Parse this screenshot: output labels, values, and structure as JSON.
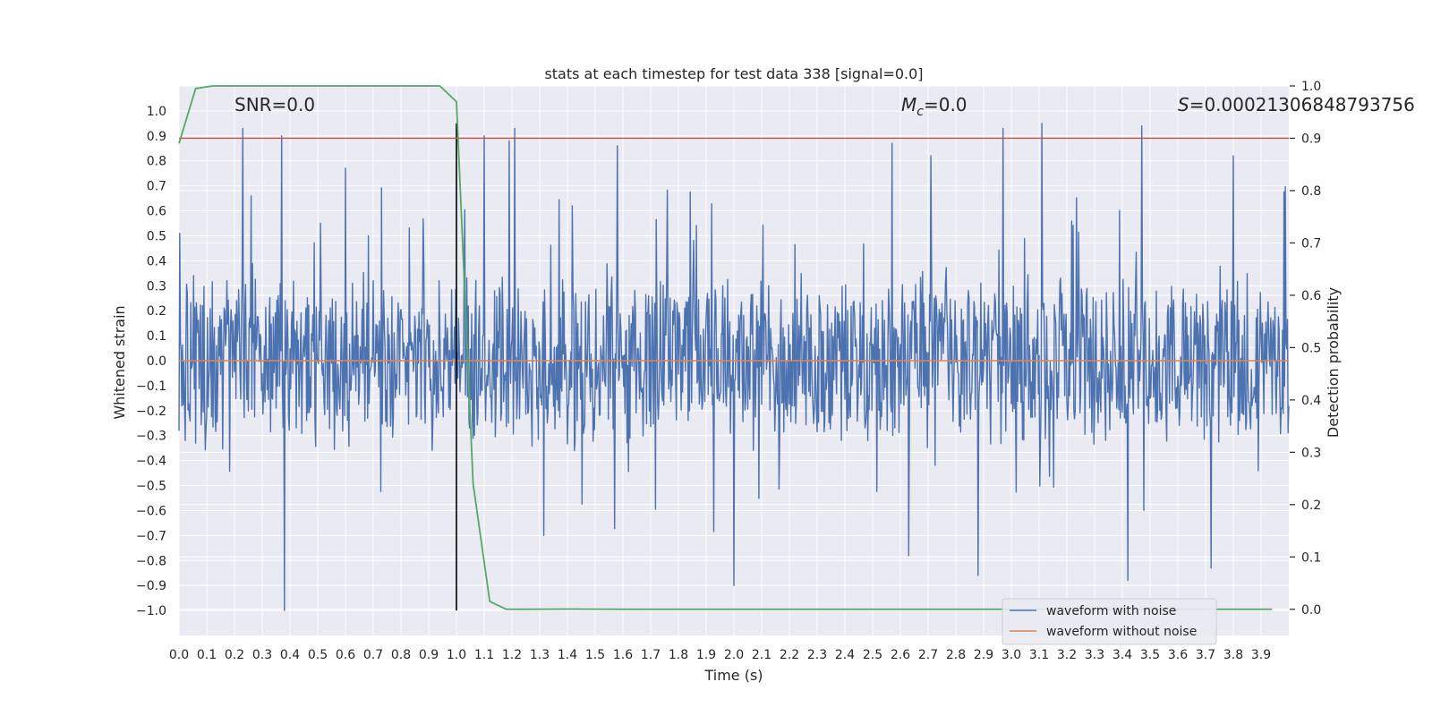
{
  "chart_data": {
    "type": "line",
    "title": "stats at each timestep for test data 338 [signal=0.0]",
    "xlabel": "Time (s)",
    "ylabel": "Whitened strain",
    "ylabel_right": "Detection probability",
    "xlim": [
      0.0,
      4.0
    ],
    "ylim": [
      -1.1,
      1.1
    ],
    "ylim_right": [
      -0.05,
      1.0
    ],
    "grid": true,
    "legend_position": "lower-right",
    "x_ticks": [
      0.0,
      0.1,
      0.2,
      0.3,
      0.4,
      0.5,
      0.6,
      0.7,
      0.8,
      0.9,
      1.0,
      1.1,
      1.2,
      1.3,
      1.4,
      1.5,
      1.6,
      1.7,
      1.8,
      1.9,
      2.0,
      2.1,
      2.2,
      2.3,
      2.4,
      2.5,
      2.6,
      2.7,
      2.8,
      2.9,
      3.0,
      3.1,
      3.2,
      3.3,
      3.4,
      3.5,
      3.6,
      3.7,
      3.8,
      3.9
    ],
    "x_tick_labels": [
      "0.0",
      "0.1",
      "0.2",
      "0.3",
      "0.4",
      "0.5",
      "0.6",
      "0.7",
      "0.8",
      "0.9",
      "1.0",
      "1.1",
      "1.2",
      "1.3",
      "1.4",
      "1.5",
      "1.6",
      "1.7",
      "1.8",
      "1.9",
      "2.0",
      "2.1",
      "2.2",
      "2.3",
      "2.4",
      "2.5",
      "2.6",
      "2.7",
      "2.8",
      "2.9",
      "3.0",
      "3.1",
      "3.2",
      "3.3",
      "3.4",
      "3.5",
      "3.6",
      "3.7",
      "3.8",
      "3.9"
    ],
    "y_ticks": [
      1.0,
      0.9,
      0.8,
      0.7,
      0.6,
      0.5,
      0.4,
      0.3,
      0.2,
      0.1,
      0.0,
      -0.1,
      -0.2,
      -0.3,
      -0.4,
      -0.5,
      -0.6,
      -0.7,
      -0.8,
      -0.9,
      -1.0
    ],
    "y_tick_labels": [
      "1.0",
      "0.9",
      "0.8",
      "0.7",
      "0.6",
      "0.5",
      "0.4",
      "0.3",
      "0.2",
      "0.1",
      "0.0",
      "−0.1",
      "−0.2",
      "−0.3",
      "−0.4",
      "−0.5",
      "−0.6",
      "−0.7",
      "−0.8",
      "−0.9",
      "−1.0"
    ],
    "y2_ticks": [
      1.0,
      0.9,
      0.8,
      0.7,
      0.6,
      0.5,
      0.4,
      0.3,
      0.2,
      0.1,
      0.0
    ],
    "y2_tick_labels": [
      "1.0",
      "0.9",
      "0.8",
      "0.7",
      "0.6",
      "0.5",
      "0.4",
      "0.3",
      "0.2",
      "0.1",
      "0.0"
    ],
    "annotations": {
      "snr": "SNR=0.0",
      "mc_symbol": "M",
      "mc_sub": "c",
      "mc_value": "=0.0",
      "s_symbol": "S",
      "s_value": "=0.00021306848793756"
    },
    "series": [
      {
        "name": "waveform with noise",
        "color": "#4c72b0",
        "axis": "left",
        "description": "whitened noise, approx. uniform +/-0.35 band with spikes",
        "sample_rate": 400,
        "peaks": [
          {
            "x": 0.23,
            "y": 0.93
          },
          {
            "x": 0.37,
            "y": 0.9
          },
          {
            "x": 0.38,
            "y": -1.0
          },
          {
            "x": 0.6,
            "y": 0.77
          },
          {
            "x": 1.1,
            "y": 0.9
          },
          {
            "x": 1.19,
            "y": 0.88
          },
          {
            "x": 1.21,
            "y": 0.93
          },
          {
            "x": 1.58,
            "y": 0.86
          },
          {
            "x": 2.0,
            "y": -0.9
          },
          {
            "x": 2.57,
            "y": 0.87
          },
          {
            "x": 2.63,
            "y": -0.78
          },
          {
            "x": 2.71,
            "y": 0.82
          },
          {
            "x": 2.88,
            "y": -0.86
          },
          {
            "x": 2.97,
            "y": 0.93
          },
          {
            "x": 3.11,
            "y": 0.95
          },
          {
            "x": 3.42,
            "y": -0.88
          },
          {
            "x": 3.47,
            "y": 0.94
          },
          {
            "x": 3.72,
            "y": -0.83
          },
          {
            "x": 3.8,
            "y": 0.82
          }
        ]
      },
      {
        "name": "waveform without noise",
        "color": "#dd8452",
        "axis": "left",
        "x": [
          0.0,
          4.0
        ],
        "y": [
          0.0,
          0.0
        ]
      },
      {
        "name": "",
        "color": "#55a868",
        "axis": "right",
        "x": [
          0.0,
          0.06,
          0.12,
          0.18,
          0.24,
          0.3,
          0.36,
          0.42,
          0.48,
          0.54,
          0.6,
          0.66,
          0.72,
          0.78,
          0.84,
          0.9,
          0.94,
          1.0,
          1.06,
          1.12,
          1.18,
          1.24,
          1.4,
          1.6,
          1.8,
          2.0,
          2.4,
          2.8,
          3.2,
          3.6,
          3.94
        ],
        "y": [
          0.89,
          0.995,
          1.0,
          1.0,
          1.0,
          1.0,
          1.0,
          1.0,
          1.0,
          1.0,
          1.0,
          1.0,
          1.0,
          1.0,
          1.0,
          1.0,
          1.0,
          0.97,
          0.24,
          0.015,
          0.0,
          0.0,
          0.0005,
          0.0,
          0.0,
          0.0,
          0.0,
          0.0,
          0.0,
          0.0,
          0.0
        ]
      }
    ],
    "threshold_line": {
      "axis": "right",
      "y": 0.9,
      "color": "#c44e52"
    },
    "vertical_line": {
      "x": 1.0,
      "y_range": [
        -1.0,
        0.95
      ],
      "color": "#000000"
    },
    "legend": [
      {
        "label": "waveform with noise",
        "color": "#4c72b0"
      },
      {
        "label": "waveform without noise",
        "color": "#dd8452"
      }
    ]
  }
}
